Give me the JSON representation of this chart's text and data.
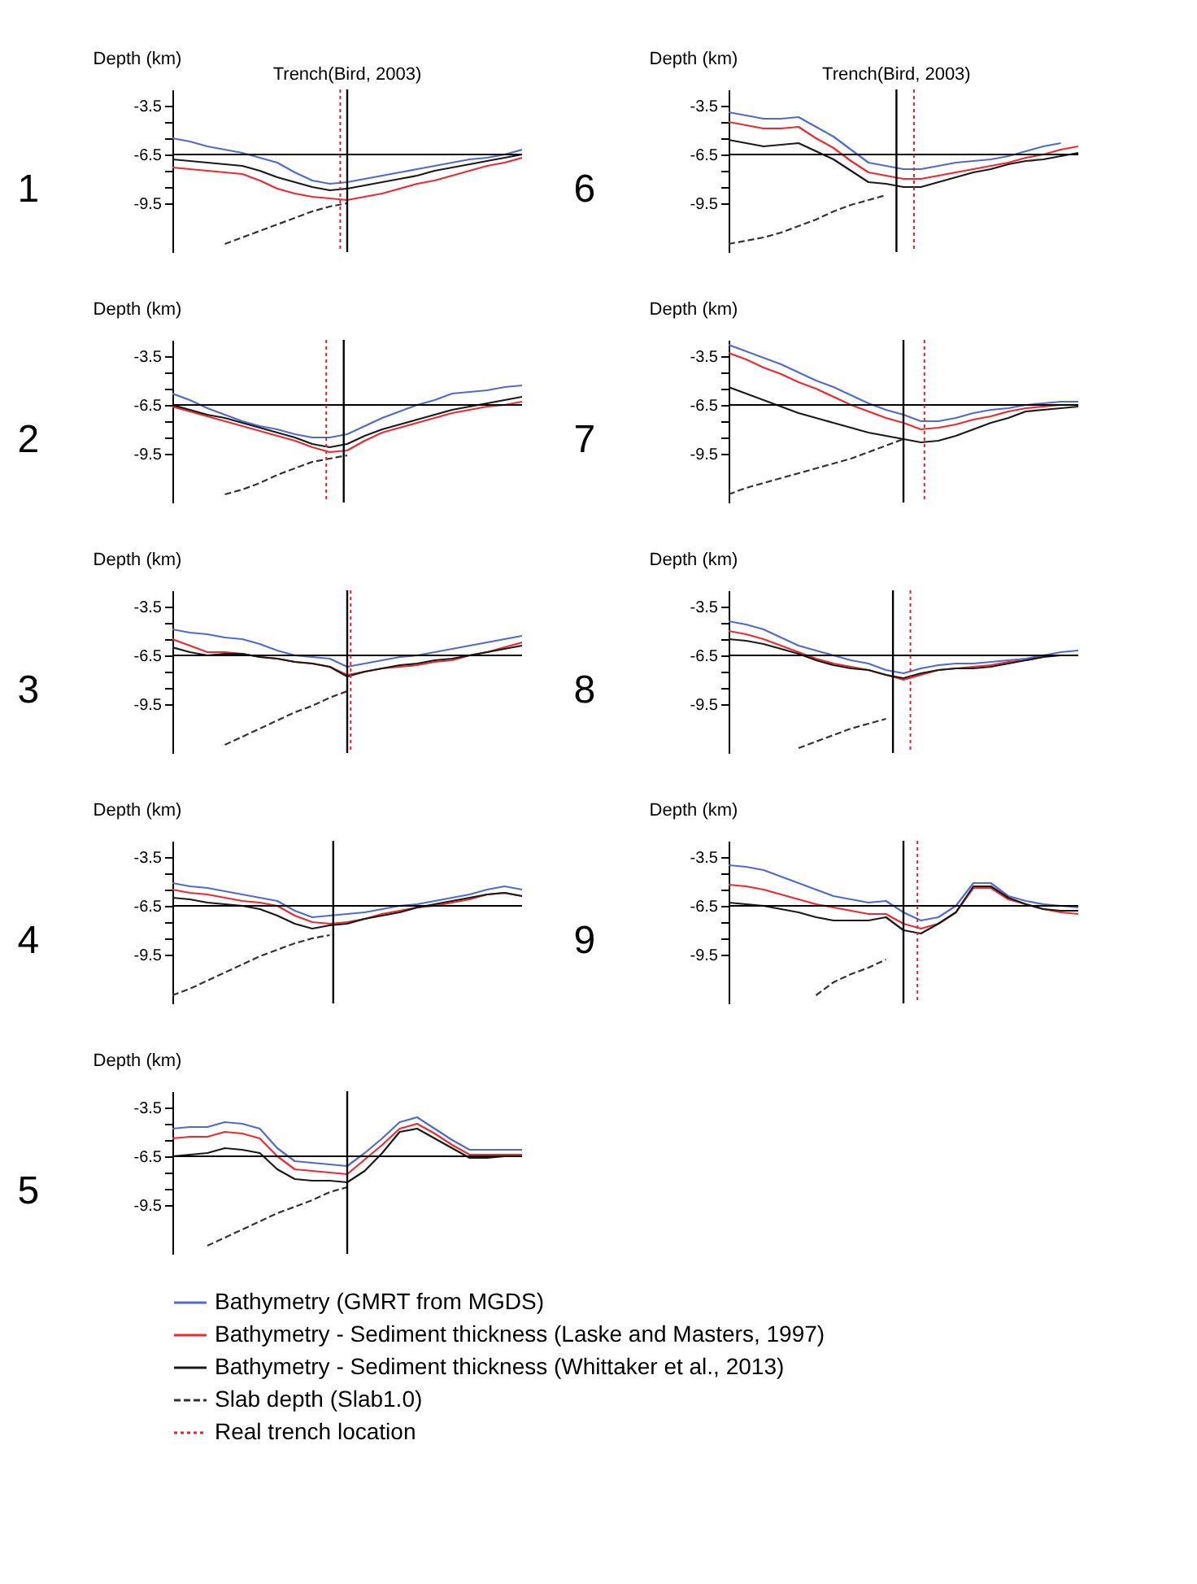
{
  "chart_data": [
    {
      "type": "line",
      "title": "1",
      "ylabel": "Depth (km)",
      "categories": [
        null,
        null,
        null,
        null,
        null,
        null,
        null,
        null,
        null,
        null,
        null,
        null,
        null,
        null,
        null,
        null,
        null,
        null,
        null,
        null,
        null
      ],
      "ylim": [
        -12.5,
        -2.5
      ],
      "yticks": [
        -3.5,
        {
          "value": -4.5,
          "label": null
        },
        {
          "value": -5.5,
          "label": null
        },
        -6.5,
        {
          "value": -7.5,
          "label": null
        },
        {
          "value": -8.5,
          "label": null
        },
        -9.5
      ],
      "tick_labels": "y",
      "legend": "bottom",
      "ref_lines": [
        {
          "axis": "y",
          "value": -6.5,
          "color": "#000000"
        }
      ],
      "annotations": [
        "Trench(Bird, 2003)"
      ],
      "series": [
        {
          "name": "Bathymetry (GMRT from MGDS)",
          "color": "#4f6bd0",
          "values": [
            -5.5,
            -5.7,
            -6.0,
            -6.2,
            -6.4,
            -6.7,
            -7.0,
            -7.6,
            -8.1,
            -8.3,
            -8.2,
            -8.0,
            -7.8,
            -7.6,
            -7.4,
            -7.2,
            -7.0,
            -6.8,
            -6.7,
            -6.5,
            -6.2
          ]
        },
        {
          "name": "Bathymetry - Sediment thickness (Laske and Masters, 1997)",
          "color": "#ee2a2f",
          "values": [
            -7.3,
            -7.4,
            -7.5,
            -7.6,
            -7.7,
            -8.1,
            -8.6,
            -8.9,
            -9.1,
            -9.2,
            -9.3,
            -9.1,
            -8.9,
            -8.6,
            -8.3,
            -8.1,
            -7.8,
            -7.5,
            -7.2,
            -7.0,
            -6.7
          ]
        },
        {
          "name": "Bathymetry - Sediment thickness (Whittaker et al., 2013)",
          "color": "#1a1a1a",
          "values": [
            -6.8,
            -6.9,
            -7.0,
            -7.1,
            -7.2,
            -7.5,
            -7.9,
            -8.2,
            -8.5,
            -8.7,
            -8.6,
            -8.4,
            -8.2,
            -8.0,
            -7.8,
            -7.5,
            -7.3,
            -7.1,
            -6.9,
            -6.7,
            -6.5
          ]
        },
        {
          "name": "Slab depth (Slab1.0)",
          "color": "#333333",
          "line_style": "dashed",
          "values": [
            null,
            null,
            null,
            -12.0,
            -11.6,
            -11.2,
            -10.8,
            -10.4,
            -10.0,
            -9.7,
            -9.5,
            null,
            null,
            null,
            null,
            null,
            null,
            null,
            null,
            null,
            null
          ]
        },
        {
          "name": "Real trench location",
          "color": "#e8202a",
          "line_style": "dotted",
          "values": [
            null,
            null,
            null,
            null,
            null,
            null,
            null,
            null,
            null,
            null,
            null,
            null,
            null,
            null,
            null,
            null,
            null,
            null,
            null,
            null,
            null
          ]
        }
      ]
    },
    {
      "type": "line",
      "title": "2",
      "ylabel": "Depth (km)",
      "categories": [
        null,
        null,
        null,
        null,
        null,
        null,
        null,
        null,
        null,
        null,
        null,
        null,
        null,
        null,
        null,
        null,
        null,
        null,
        null,
        null,
        null
      ],
      "ylim": [
        -12.5,
        -2.5
      ],
      "yticks": [
        -3.5,
        {
          "value": -4.5,
          "label": null
        },
        {
          "value": -5.5,
          "label": null
        },
        -6.5,
        {
          "value": -7.5,
          "label": null
        },
        {
          "value": -8.5,
          "label": null
        },
        -9.5
      ],
      "tick_labels": "y",
      "ref_lines": [
        {
          "axis": "y",
          "value": -6.5,
          "color": "#000000"
        }
      ],
      "series": [
        {
          "name": "Bathymetry (GMRT from MGDS)",
          "color": "#4f6bd0",
          "values": [
            -5.8,
            -6.2,
            -6.7,
            -7.1,
            -7.5,
            -7.8,
            -8.0,
            -8.3,
            -8.5,
            -8.5,
            -8.3,
            -7.8,
            -7.3,
            -6.9,
            -6.5,
            -6.2,
            -5.8,
            -5.7,
            -5.6,
            -5.4,
            -5.3
          ]
        },
        {
          "name": "Bathymetry - Sediment thickness (Laske and Masters, 1997)",
          "color": "#ee2a2f",
          "values": [
            -6.6,
            -6.9,
            -7.2,
            -7.5,
            -7.8,
            -8.1,
            -8.4,
            -8.7,
            -9.1,
            -9.4,
            -9.3,
            -8.7,
            -8.2,
            -7.9,
            -7.6,
            -7.3,
            -7.0,
            -6.8,
            -6.6,
            -6.5,
            -6.3
          ]
        },
        {
          "name": "Bathymetry - Sediment thickness (Whittaker et al., 2013)",
          "color": "#1a1a1a",
          "values": [
            -6.5,
            -6.8,
            -7.1,
            -7.3,
            -7.6,
            -7.9,
            -8.2,
            -8.5,
            -8.9,
            -9.1,
            -8.9,
            -8.4,
            -8.0,
            -7.7,
            -7.4,
            -7.1,
            -6.8,
            -6.6,
            -6.4,
            -6.2,
            -6.0
          ]
        },
        {
          "name": "Slab depth (Slab1.0)",
          "color": "#333333",
          "line_style": "dashed",
          "values": [
            null,
            null,
            null,
            -12.0,
            -11.7,
            -11.3,
            -10.8,
            -10.4,
            -10.0,
            -9.8,
            -9.6,
            null,
            null,
            null,
            null,
            null,
            null,
            null,
            null,
            null,
            null
          ]
        }
      ]
    },
    {
      "type": "line",
      "title": "3",
      "ylabel": "Depth (km)",
      "categories": [
        null,
        null,
        null,
        null,
        null,
        null,
        null,
        null,
        null,
        null,
        null,
        null,
        null,
        null,
        null,
        null,
        null,
        null,
        null,
        null,
        null
      ],
      "ylim": [
        -12.5,
        -2.5
      ],
      "yticks": [
        -3.5,
        {
          "value": -4.5,
          "label": null
        },
        {
          "value": -5.5,
          "label": null
        },
        -6.5,
        {
          "value": -7.5,
          "label": null
        },
        {
          "value": -8.5,
          "label": null
        },
        -9.5
      ],
      "tick_labels": "y",
      "ref_lines": [
        {
          "axis": "y",
          "value": -6.5,
          "color": "#000000"
        }
      ],
      "series": [
        {
          "name": "Bathymetry (GMRT from MGDS)",
          "color": "#4f6bd0",
          "values": [
            -4.9,
            -5.1,
            -5.2,
            -5.4,
            -5.5,
            -5.8,
            -6.2,
            -6.5,
            -6.6,
            -6.7,
            -7.2,
            -7.0,
            -6.8,
            -6.6,
            -6.5,
            -6.3,
            -6.1,
            -5.9,
            -5.7,
            -5.5,
            -5.3
          ]
        },
        {
          "name": "Bathymetry - Sediment thickness (Laske and Masters, 1997)",
          "color": "#ee2a2f",
          "values": [
            -5.5,
            -5.9,
            -6.3,
            -6.3,
            -6.4,
            -6.6,
            -6.7,
            -6.9,
            -7.0,
            -7.2,
            -7.7,
            -7.5,
            -7.3,
            -7.2,
            -7.1,
            -6.9,
            -6.8,
            -6.5,
            -6.3,
            -6.0,
            -5.7
          ]
        },
        {
          "name": "Bathymetry - Sediment thickness (Whittaker et al., 2013)",
          "color": "#1a1a1a",
          "values": [
            -6.0,
            -6.3,
            -6.5,
            -6.4,
            -6.4,
            -6.6,
            -6.7,
            -6.9,
            -7.0,
            -7.2,
            -7.8,
            -7.5,
            -7.3,
            -7.1,
            -7.0,
            -6.8,
            -6.7,
            -6.5,
            -6.3,
            -6.1,
            -5.9
          ]
        },
        {
          "name": "Slab depth (Slab1.0)",
          "color": "#333333",
          "line_style": "dashed",
          "values": [
            null,
            null,
            null,
            -12.0,
            -11.5,
            -11.0,
            -10.5,
            -10.0,
            -9.6,
            -9.1,
            -8.7,
            null,
            null,
            null,
            null,
            null,
            null,
            null,
            null,
            null,
            null
          ]
        }
      ]
    },
    {
      "type": "line",
      "title": "4",
      "ylabel": "Depth (km)",
      "categories": [
        null,
        null,
        null,
        null,
        null,
        null,
        null,
        null,
        null,
        null,
        null,
        null,
        null,
        null,
        null,
        null,
        null,
        null,
        null,
        null,
        null
      ],
      "ylim": [
        -12.5,
        -2.5
      ],
      "yticks": [
        -3.5,
        {
          "value": -4.5,
          "label": null
        },
        {
          "value": -5.5,
          "label": null
        },
        -6.5,
        {
          "value": -7.5,
          "label": null
        },
        {
          "value": -8.5,
          "label": null
        },
        -9.5
      ],
      "tick_labels": "y",
      "ref_lines": [
        {
          "axis": "y",
          "value": -6.5,
          "color": "#000000"
        }
      ],
      "series": [
        {
          "name": "Bathymetry (GMRT from MGDS)",
          "color": "#4f6bd0",
          "values": [
            -5.1,
            -5.3,
            -5.4,
            -5.6,
            -5.8,
            -6.0,
            -6.2,
            -6.8,
            -7.2,
            -7.1,
            -7.0,
            -6.9,
            -6.7,
            -6.5,
            -6.4,
            -6.2,
            -6.0,
            -5.8,
            -5.5,
            -5.3,
            -5.5
          ]
        },
        {
          "name": "Bathymetry - Sediment thickness (Laske and Masters, 1997)",
          "color": "#ee2a2f",
          "values": [
            -5.5,
            -5.7,
            -5.8,
            -6.0,
            -6.2,
            -6.3,
            -6.5,
            -7.1,
            -7.5,
            -7.6,
            -7.5,
            -7.3,
            -7.0,
            -6.8,
            -6.6,
            -6.5,
            -6.3,
            -6.1,
            -5.8,
            -5.7,
            -5.9
          ]
        },
        {
          "name": "Bathymetry - Sediment thickness (Whittaker et al., 2013)",
          "color": "#1a1a1a",
          "values": [
            -6.0,
            -6.1,
            -6.3,
            -6.4,
            -6.5,
            -6.7,
            -7.1,
            -7.6,
            -7.9,
            -7.7,
            -7.6,
            -7.3,
            -7.1,
            -6.9,
            -6.6,
            -6.4,
            -6.2,
            -6.0,
            -5.8,
            -5.7,
            -5.9
          ]
        },
        {
          "name": "Slab depth (Slab1.0)",
          "color": "#333333",
          "line_style": "dashed",
          "values": [
            -12.0,
            -11.6,
            -11.1,
            -10.6,
            -10.1,
            -9.6,
            -9.2,
            -8.8,
            -8.5,
            -8.3,
            null,
            null,
            null,
            null,
            null,
            null,
            null,
            null,
            null,
            null,
            null
          ]
        }
      ]
    },
    {
      "type": "line",
      "title": "5",
      "ylabel": "Depth (km)",
      "categories": [
        null,
        null,
        null,
        null,
        null,
        null,
        null,
        null,
        null,
        null,
        null,
        null,
        null,
        null,
        null,
        null,
        null,
        null,
        null,
        null,
        null
      ],
      "ylim": [
        -12.5,
        -2.5
      ],
      "yticks": [
        -3.5,
        {
          "value": -4.5,
          "label": null
        },
        {
          "value": -5.5,
          "label": null
        },
        -6.5,
        {
          "value": -7.5,
          "label": null
        },
        {
          "value": -8.5,
          "label": null
        },
        -9.5
      ],
      "tick_labels": "y",
      "ref_lines": [
        {
          "axis": "y",
          "value": -6.5,
          "color": "#000000"
        }
      ],
      "series": [
        {
          "name": "Bathymetry (GMRT from MGDS)",
          "color": "#4f6bd0",
          "values": [
            -4.8,
            -4.7,
            -4.7,
            -4.4,
            -4.5,
            -4.8,
            -6.0,
            -6.8,
            -6.9,
            -7.0,
            -7.1,
            -6.3,
            -5.4,
            -4.4,
            -4.1,
            -4.8,
            -5.5,
            -6.1,
            -6.1,
            -6.1,
            -6.1
          ]
        },
        {
          "name": "Bathymetry - Sediment thickness (Laske and Masters, 1997)",
          "color": "#ee2a2f",
          "values": [
            -5.4,
            -5.3,
            -5.3,
            -5.0,
            -5.1,
            -5.4,
            -6.5,
            -7.3,
            -7.4,
            -7.5,
            -7.6,
            -6.7,
            -5.8,
            -4.8,
            -4.5,
            -5.1,
            -5.8,
            -6.4,
            -6.4,
            -6.4,
            -6.4
          ]
        },
        {
          "name": "Bathymetry - Sediment thickness (Whittaker et al., 2013)",
          "color": "#1a1a1a",
          "values": [
            -6.5,
            -6.4,
            -6.3,
            -6.0,
            -6.1,
            -6.3,
            -7.3,
            -7.9,
            -8.0,
            -8.0,
            -8.1,
            -7.4,
            -6.3,
            -5.0,
            -4.8,
            -5.4,
            -6.0,
            -6.6,
            -6.6,
            -6.5,
            -6.5
          ]
        },
        {
          "name": "Slab depth (Slab1.0)",
          "color": "#333333",
          "line_style": "dashed",
          "values": [
            null,
            null,
            -12.0,
            -11.5,
            -11.0,
            -10.5,
            -10.0,
            -9.6,
            -9.2,
            -8.7,
            -8.4,
            null,
            null,
            null,
            null,
            null,
            null,
            null,
            null,
            null,
            null
          ]
        }
      ]
    },
    {
      "type": "line",
      "title": "6",
      "ylabel": "Depth (km)",
      "categories": [
        null,
        null,
        null,
        null,
        null,
        null,
        null,
        null,
        null,
        null,
        null,
        null,
        null,
        null,
        null,
        null,
        null,
        null,
        null,
        null,
        null
      ],
      "ylim": [
        -12.5,
        -2.5
      ],
      "yticks": [
        -3.5,
        {
          "value": -4.5,
          "label": null
        },
        {
          "value": -5.5,
          "label": null
        },
        -6.5,
        {
          "value": -7.5,
          "label": null
        },
        {
          "value": -8.5,
          "label": null
        },
        -9.5
      ],
      "tick_labels": "y",
      "ref_lines": [
        {
          "axis": "y",
          "value": -6.5,
          "color": "#000000"
        }
      ],
      "annotations": [
        "Trench(Bird, 2003)"
      ],
      "series": [
        {
          "name": "Bathymetry (GMRT from MGDS)",
          "color": "#4f6bd0",
          "values": [
            -3.9,
            -4.1,
            -4.3,
            -4.3,
            -4.2,
            -4.8,
            -5.4,
            -6.2,
            -7.0,
            -7.2,
            -7.4,
            -7.4,
            -7.2,
            -7.0,
            -6.9,
            -6.8,
            -6.6,
            -6.3,
            -6.0,
            -5.8,
            null
          ]
        },
        {
          "name": "Bathymetry - Sediment thickness (Laske and Masters, 1997)",
          "color": "#ee2a2f",
          "values": [
            -4.5,
            -4.7,
            -4.9,
            -4.9,
            -4.8,
            -5.5,
            -6.1,
            -6.9,
            -7.6,
            -7.8,
            -8.0,
            -8.0,
            -7.8,
            -7.6,
            -7.4,
            -7.2,
            -7.0,
            -6.7,
            -6.5,
            -6.2,
            -6.0
          ]
        },
        {
          "name": "Bathymetry - Sediment thickness (Whittaker et al., 2013)",
          "color": "#1a1a1a",
          "values": [
            -5.6,
            -5.8,
            -6.0,
            -5.9,
            -5.8,
            -6.3,
            -6.8,
            -7.5,
            -8.2,
            -8.3,
            -8.5,
            -8.5,
            -8.2,
            -7.9,
            -7.6,
            -7.4,
            -7.1,
            -6.9,
            -6.8,
            -6.6,
            -6.4
          ]
        },
        {
          "name": "Slab depth (Slab1.0)",
          "color": "#333333",
          "line_style": "dashed",
          "values": [
            -12.0,
            -11.8,
            -11.6,
            -11.3,
            -10.9,
            -10.5,
            -10.0,
            -9.6,
            -9.3,
            -9.0,
            null,
            null,
            null,
            null,
            null,
            null,
            null,
            null,
            null,
            null,
            null
          ]
        }
      ]
    },
    {
      "type": "line",
      "title": "7",
      "ylabel": "Depth (km)",
      "categories": [
        null,
        null,
        null,
        null,
        null,
        null,
        null,
        null,
        null,
        null,
        null,
        null,
        null,
        null,
        null,
        null,
        null,
        null,
        null,
        null,
        null
      ],
      "ylim": [
        -12.5,
        -2.5
      ],
      "yticks": [
        -3.5,
        {
          "value": -4.5,
          "label": null
        },
        {
          "value": -5.5,
          "label": null
        },
        -6.5,
        {
          "value": -7.5,
          "label": null
        },
        {
          "value": -8.5,
          "label": null
        },
        -9.5
      ],
      "tick_labels": "y",
      "ref_lines": [
        {
          "axis": "y",
          "value": -6.5,
          "color": "#000000"
        }
      ],
      "series": [
        {
          "name": "Bathymetry (GMRT from MGDS)",
          "color": "#4f6bd0",
          "values": [
            -2.8,
            -3.2,
            -3.6,
            -4.0,
            -4.5,
            -5.0,
            -5.4,
            -5.9,
            -6.4,
            -6.8,
            -7.1,
            -7.5,
            -7.5,
            -7.3,
            -7.0,
            -6.8,
            -6.7,
            -6.5,
            -6.4,
            -6.3,
            -6.3
          ]
        },
        {
          "name": "Bathymetry - Sediment thickness (Laske and Masters, 1997)",
          "color": "#ee2a2f",
          "values": [
            -3.3,
            -3.7,
            -4.2,
            -4.6,
            -5.1,
            -5.5,
            -6.0,
            -6.5,
            -6.9,
            -7.3,
            -7.6,
            -8.0,
            -7.9,
            -7.7,
            -7.4,
            -7.2,
            -6.9,
            -6.7,
            -6.6,
            -6.5,
            -6.5
          ]
        },
        {
          "name": "Bathymetry - Sediment thickness (Whittaker et al., 2013)",
          "color": "#1a1a1a",
          "values": [
            -5.4,
            -5.8,
            -6.2,
            -6.6,
            -7.0,
            -7.3,
            -7.6,
            -7.9,
            -8.2,
            -8.4,
            -8.6,
            -8.8,
            -8.7,
            -8.4,
            -8.0,
            -7.6,
            -7.3,
            -6.9,
            -6.8,
            -6.7,
            -6.6
          ]
        },
        {
          "name": "Slab depth (Slab1.0)",
          "color": "#333333",
          "line_style": "dashed",
          "values": [
            -12.0,
            -11.6,
            -11.3,
            -11.0,
            -10.7,
            -10.4,
            -10.1,
            -9.8,
            -9.4,
            -9.0,
            -8.6,
            null,
            null,
            null,
            null,
            null,
            null,
            null,
            null,
            null,
            null
          ]
        }
      ]
    },
    {
      "type": "line",
      "title": "8",
      "ylabel": "Depth (km)",
      "categories": [
        null,
        null,
        null,
        null,
        null,
        null,
        null,
        null,
        null,
        null,
        null,
        null,
        null,
        null,
        null,
        null,
        null,
        null,
        null,
        null,
        null
      ],
      "ylim": [
        -12.5,
        -2.5
      ],
      "yticks": [
        -3.5,
        {
          "value": -4.5,
          "label": null
        },
        {
          "value": -5.5,
          "label": null
        },
        -6.5,
        {
          "value": -7.5,
          "label": null
        },
        {
          "value": -8.5,
          "label": null
        },
        -9.5
      ],
      "tick_labels": "y",
      "ref_lines": [
        {
          "axis": "y",
          "value": -6.5,
          "color": "#000000"
        }
      ],
      "series": [
        {
          "name": "Bathymetry (GMRT from MGDS)",
          "color": "#4f6bd0",
          "values": [
            -4.4,
            -4.6,
            -4.9,
            -5.4,
            -5.9,
            -6.2,
            -6.5,
            -6.8,
            -7.0,
            -7.4,
            -7.6,
            -7.3,
            -7.1,
            -7.0,
            -7.0,
            -6.9,
            -6.8,
            -6.7,
            -6.5,
            -6.3,
            -6.2
          ]
        },
        {
          "name": "Bathymetry - Sediment thickness (Laske and Masters, 1997)",
          "color": "#ee2a2f",
          "values": [
            -5.0,
            -5.2,
            -5.5,
            -5.9,
            -6.3,
            -6.7,
            -7.0,
            -7.2,
            -7.4,
            -7.7,
            -8.0,
            -7.7,
            -7.4,
            -7.3,
            -7.2,
            -7.1,
            -6.9,
            -6.8,
            -6.6,
            null,
            null
          ]
        },
        {
          "name": "Bathymetry - Sediment thickness (Whittaker et al., 2013)",
          "color": "#1a1a1a",
          "values": [
            -5.5,
            -5.6,
            -5.8,
            -6.1,
            -6.4,
            -6.8,
            -7.1,
            -7.3,
            -7.4,
            -7.7,
            -7.9,
            -7.6,
            -7.4,
            -7.3,
            -7.3,
            -7.2,
            -7.0,
            -6.8,
            -6.6,
            -6.5,
            -6.5
          ]
        },
        {
          "name": "Slab depth (Slab1.0)",
          "color": "#333333",
          "line_style": "dashed",
          "values": [
            null,
            null,
            null,
            null,
            -12.2,
            -11.8,
            -11.4,
            -11.0,
            -10.7,
            -10.4,
            null,
            null,
            null,
            null,
            null,
            null,
            null,
            null,
            null,
            null,
            null
          ]
        }
      ]
    },
    {
      "type": "line",
      "title": "9",
      "ylabel": "Depth (km)",
      "categories": [
        null,
        null,
        null,
        null,
        null,
        null,
        null,
        null,
        null,
        null,
        null,
        null,
        null,
        null,
        null,
        null,
        null,
        null,
        null,
        null,
        null
      ],
      "ylim": [
        -12.5,
        -2.5
      ],
      "yticks": [
        -3.5,
        {
          "value": -4.5,
          "label": null
        },
        {
          "value": -5.5,
          "label": null
        },
        -6.5,
        {
          "value": -7.5,
          "label": null
        },
        {
          "value": -8.5,
          "label": null
        },
        -9.5
      ],
      "tick_labels": "y",
      "ref_lines": [
        {
          "axis": "y",
          "value": -6.5,
          "color": "#000000"
        }
      ],
      "series": [
        {
          "name": "Bathymetry (GMRT from MGDS)",
          "color": "#4f6bd0",
          "values": [
            -4.0,
            -4.1,
            -4.3,
            -4.7,
            -5.1,
            -5.5,
            -5.9,
            -6.1,
            -6.3,
            -6.2,
            -6.9,
            -7.4,
            -7.2,
            -6.5,
            -5.1,
            -5.1,
            -5.9,
            -6.2,
            -6.4,
            -6.5,
            -6.6
          ]
        },
        {
          "name": "Bathymetry - Sediment thickness (Laske and Masters, 1997)",
          "color": "#ee2a2f",
          "values": [
            -5.2,
            -5.3,
            -5.5,
            -5.8,
            -6.1,
            -6.4,
            -6.6,
            -6.8,
            -7.0,
            -7.0,
            -7.6,
            -7.9,
            -7.6,
            -6.9,
            -5.4,
            -5.4,
            -6.1,
            -6.4,
            -6.7,
            -6.9,
            -7.0
          ]
        },
        {
          "name": "Bathymetry - Sediment thickness (Whittaker et al., 2013)",
          "color": "#1a1a1a",
          "values": [
            -6.3,
            -6.4,
            -6.5,
            -6.7,
            -6.9,
            -7.2,
            -7.4,
            -7.4,
            -7.4,
            -7.2,
            -8.0,
            -8.2,
            -7.6,
            -6.9,
            -5.3,
            -5.3,
            -6.0,
            -6.4,
            -6.7,
            -6.8,
            -6.8
          ]
        },
        {
          "name": "Slab depth (Slab1.0)",
          "color": "#333333",
          "line_style": "dashed",
          "values": [
            null,
            null,
            null,
            null,
            null,
            -12.0,
            -11.2,
            -10.7,
            -10.3,
            -9.8,
            null,
            null,
            null,
            null,
            null,
            null,
            null,
            null,
            null,
            null,
            null
          ]
        }
      ]
    }
  ]
}
